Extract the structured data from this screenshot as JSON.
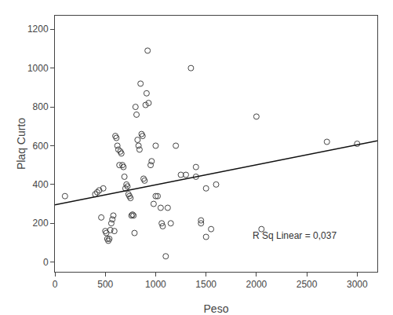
{
  "chart_data": {
    "type": "scatter",
    "xlabel": "Peso",
    "ylabel": "Plaq Curto",
    "series": [
      {
        "type": "scatter",
        "marker": "circle-open",
        "color": "#444444",
        "x": [
          100,
          400,
          420,
          440,
          460,
          480,
          500,
          510,
          520,
          530,
          540,
          550,
          560,
          570,
          580,
          590,
          600,
          610,
          620,
          630,
          640,
          650,
          660,
          670,
          680,
          690,
          700,
          710,
          720,
          730,
          740,
          750,
          760,
          770,
          780,
          790,
          800,
          810,
          820,
          830,
          840,
          850,
          860,
          870,
          880,
          890,
          900,
          910,
          920,
          930,
          950,
          960,
          980,
          1000,
          1000,
          1020,
          1050,
          1060,
          1070,
          1100,
          1120,
          1150,
          1200,
          1250,
          1300,
          1350,
          1400,
          1400,
          1450,
          1450,
          1500,
          1500,
          1550,
          1600,
          2000,
          2050,
          2700,
          3000
        ],
        "values": [
          340,
          350,
          360,
          370,
          230,
          380,
          160,
          150,
          120,
          110,
          120,
          165,
          200,
          220,
          240,
          160,
          650,
          640,
          600,
          580,
          500,
          570,
          560,
          500,
          490,
          440,
          380,
          400,
          390,
          350,
          340,
          330,
          240,
          245,
          240,
          150,
          800,
          760,
          630,
          600,
          580,
          920,
          660,
          650,
          430,
          420,
          810,
          870,
          1090,
          820,
          500,
          520,
          300,
          600,
          340,
          340,
          280,
          200,
          185,
          30,
          280,
          200,
          600,
          450,
          450,
          1000,
          440,
          490,
          215,
          200,
          130,
          380,
          170,
          400,
          750,
          170,
          620,
          610
        ]
      },
      {
        "type": "line",
        "line_style": "solid",
        "color": "#111111",
        "x": [
          0,
          3200
        ],
        "values": [
          295,
          625
        ]
      }
    ],
    "annotations": [
      {
        "text": "R Sq Linear = 0,037",
        "x": 1950,
        "y": 100
      }
    ],
    "xlim": [
      0,
      3200
    ],
    "ylim": [
      -50,
      1270
    ],
    "xticks": [
      0,
      500,
      1000,
      1500,
      2000,
      2500,
      3000
    ],
    "yticks": [
      0,
      200,
      400,
      600,
      800,
      1000,
      1200
    ],
    "grid": false
  }
}
